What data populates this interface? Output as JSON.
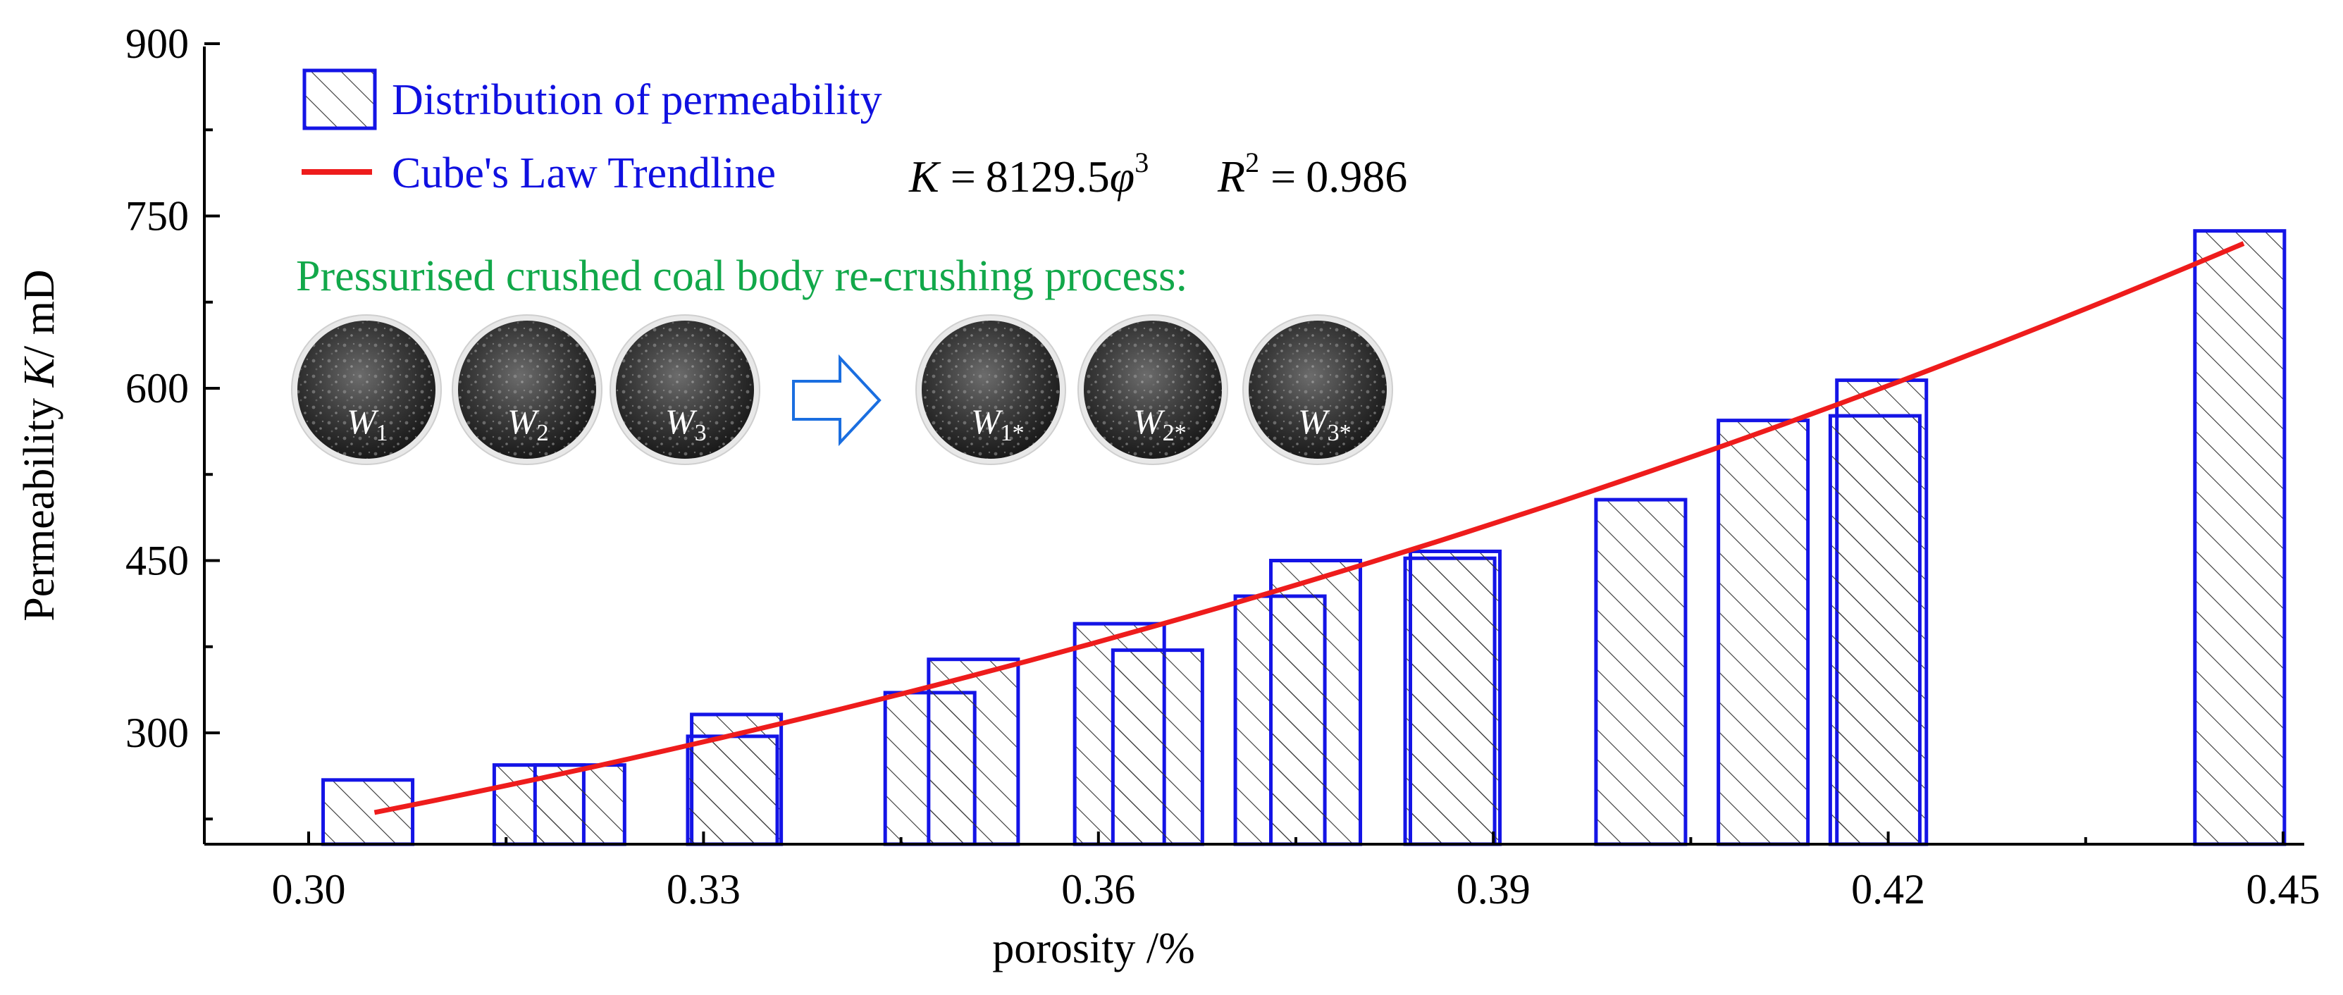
{
  "chart_data": {
    "type": "bar",
    "title": "",
    "xlabel": "porosity /%",
    "ylabel": "Permeability K/ mD",
    "ylabel_parts": {
      "prefix": "Permeability ",
      "italic": "K",
      "suffix": "/ mD"
    },
    "xlim": [
      0.29,
      0.45
    ],
    "ylim": [
      200,
      900
    ],
    "xticks": [
      0.3,
      0.33,
      0.36,
      0.39,
      0.42,
      0.45
    ],
    "xtick_labels": [
      "0.30",
      "0.33",
      "0.36",
      "0.39",
      "0.42",
      "0.45"
    ],
    "yticks": [
      300,
      450,
      600,
      750,
      900
    ],
    "ytick_labels": [
      "300",
      "450",
      "600",
      "750",
      "900"
    ],
    "bar_width": 0.0068,
    "series": [
      {
        "name": "Distribution of permeability",
        "color": "#1414e6",
        "bars": [
          {
            "x": 0.3045,
            "y": 259
          },
          {
            "x": 0.3175,
            "y": 272
          },
          {
            "x": 0.3206,
            "y": 272
          },
          {
            "x": 0.3325,
            "y": 316
          },
          {
            "x": 0.3322,
            "y": 297
          },
          {
            "x": 0.3472,
            "y": 335
          },
          {
            "x": 0.3505,
            "y": 364
          },
          {
            "x": 0.3616,
            "y": 395
          },
          {
            "x": 0.3645,
            "y": 372
          },
          {
            "x": 0.3738,
            "y": 419
          },
          {
            "x": 0.3765,
            "y": 450
          },
          {
            "x": 0.3867,
            "y": 452
          },
          {
            "x": 0.3871,
            "y": 458
          },
          {
            "x": 0.4012,
            "y": 503
          },
          {
            "x": 0.4105,
            "y": 572
          },
          {
            "x": 0.4195,
            "y": 607
          },
          {
            "x": 0.419,
            "y": 576
          },
          {
            "x": 0.4467,
            "y": 737
          }
        ]
      },
      {
        "name": "Cube's Law Trendline",
        "color": "#ee1c1c",
        "coefficient": 8129.5,
        "exponent": 3,
        "x_start": 0.305,
        "x_end": 0.447
      }
    ],
    "legend": {
      "position": "top-left",
      "entries": [
        "Distribution of permeability",
        "Cube's Law Trendline"
      ]
    },
    "annotations": {
      "equation": {
        "lhs": "K",
        "eq": "=",
        "coef": "8129.5",
        "var": "φ",
        "pow": "3"
      },
      "r_squared": {
        "label": "R",
        "pow": "2",
        "eq": "=",
        "value": "0.986"
      },
      "process_caption": "Pressurised crushed coal body re-crushing process:",
      "samples_before": [
        {
          "letter": "W",
          "sub": "1"
        },
        {
          "letter": "W",
          "sub": "2"
        },
        {
          "letter": "W",
          "sub": "3"
        }
      ],
      "samples_after": [
        {
          "letter": "W",
          "sub": "1*"
        },
        {
          "letter": "W",
          "sub": "2*"
        },
        {
          "letter": "W",
          "sub": "3*"
        }
      ]
    }
  }
}
